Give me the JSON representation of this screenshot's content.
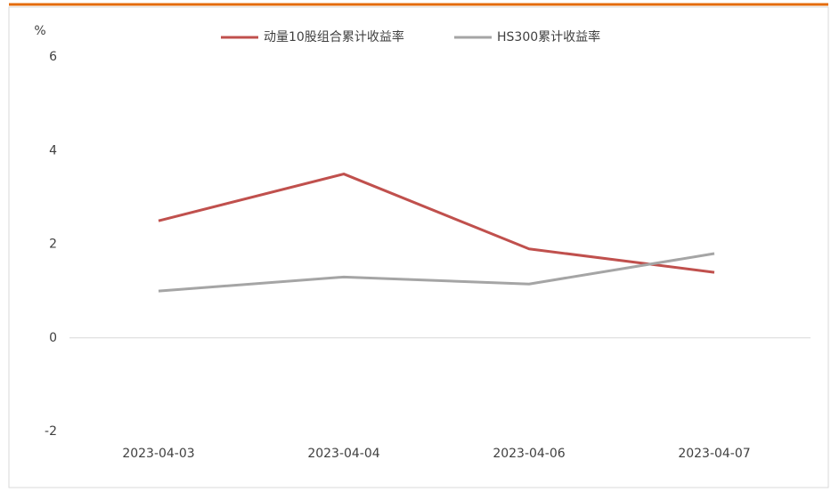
{
  "chart_data": {
    "type": "line",
    "y_unit": "%",
    "categories": [
      "2023-04-03",
      "2023-04-04",
      "2023-04-06",
      "2023-04-07"
    ],
    "series": [
      {
        "name": "动量10股组合累计收益率",
        "color": "#c0504d",
        "values": [
          2.5,
          3.5,
          1.9,
          1.4
        ]
      },
      {
        "name": "HS300累计收益率",
        "color": "#a5a5a5",
        "values": [
          1.0,
          1.3,
          1.15,
          1.8
        ]
      }
    ],
    "ylim": [
      -2,
      6
    ],
    "yticks": [
      -2,
      0,
      2,
      4,
      6
    ],
    "grid": false,
    "legend": "top"
  }
}
